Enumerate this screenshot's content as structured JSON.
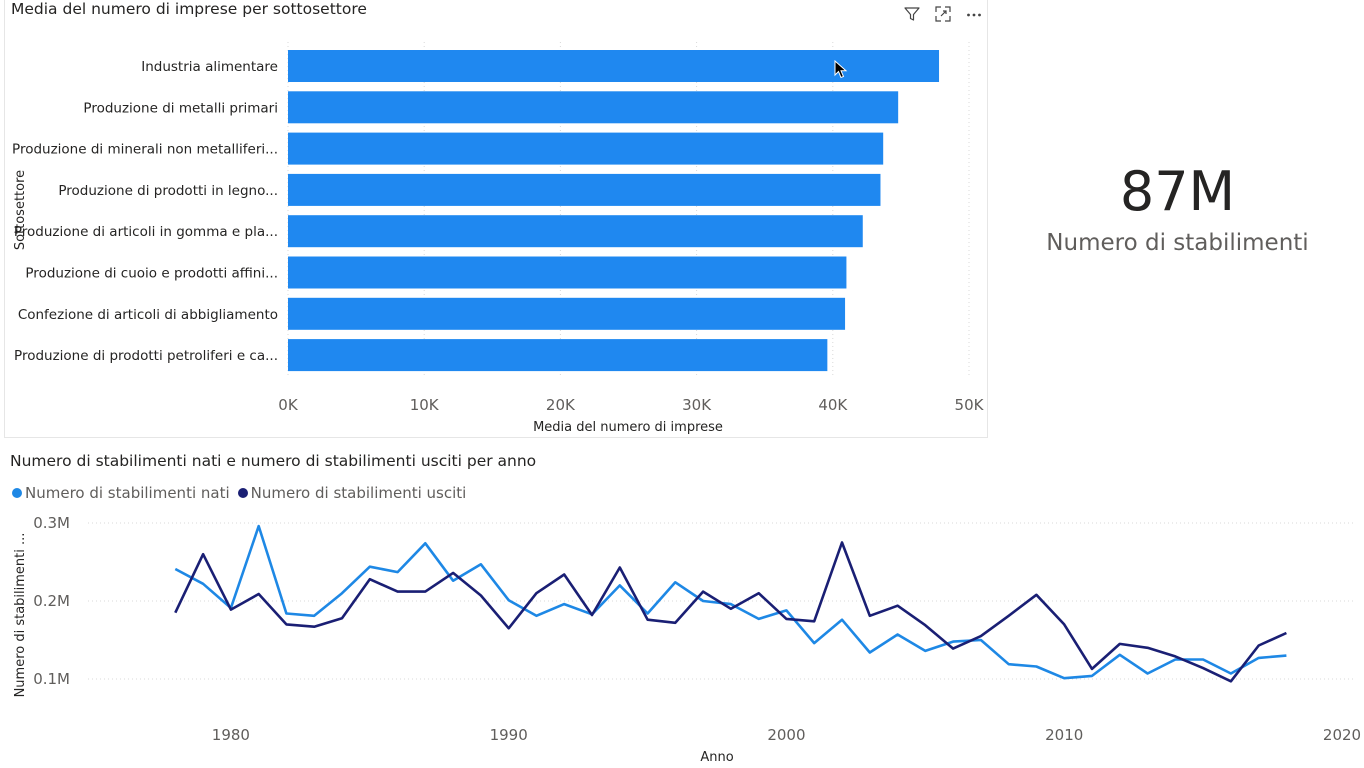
{
  "bar_chart": {
    "title": "Media del numero di imprese per sottosettore",
    "icons": [
      "filter-icon",
      "focus-mode-icon",
      "more-options-icon"
    ]
  },
  "kpi": {
    "value": "87M",
    "label": "Numero di stabilimenti"
  },
  "line_chart": {
    "title": "Numero di stabilimenti nati e numero di stabilimenti usciti per anno"
  },
  "colors": {
    "bar": "#1f88f0",
    "nati": "#1e88e5",
    "usciti": "#1a1f74",
    "grid": "#d9d9d9",
    "axis_text": "#605e5c"
  },
  "chart_data": [
    {
      "type": "bar",
      "orientation": "horizontal",
      "title": "Media del numero di imprese per sottosettore",
      "ylabel": "Sottosettore",
      "xlabel": "Media del numero di imprese",
      "categories": [
        "Industria alimentare",
        "Produzione di metalli primari",
        "Produzione di minerali non metalliferi...",
        "Produzione di prodotti in legno...",
        "Produzione di articoli in gomma e pla...",
        "Produzione di cuoio e prodotti affini...",
        "Confezione di articoli di abbigliamento",
        "Produzione di prodotti petroliferi e ca..."
      ],
      "values": [
        47800,
        44800,
        43700,
        43500,
        42200,
        41000,
        40900,
        39600
      ],
      "xlim": [
        0,
        50000
      ],
      "xticks": [
        {
          "value": 0,
          "label": "0K"
        },
        {
          "value": 10000,
          "label": "10K"
        },
        {
          "value": 20000,
          "label": "20K"
        },
        {
          "value": 30000,
          "label": "30K"
        },
        {
          "value": 40000,
          "label": "40K"
        },
        {
          "value": 50000,
          "label": "50K"
        }
      ],
      "grid": true
    },
    {
      "type": "line",
      "title": "Numero di stabilimenti nati e numero di stabilimenti usciti per anno",
      "xlabel": "Anno",
      "ylabel": "Numero di stabilimenti ...",
      "xlim": [
        1975,
        2020
      ],
      "ylim": [
        0.075,
        0.31
      ],
      "xticks": [
        {
          "value": 1980,
          "label": "1980"
        },
        {
          "value": 1990,
          "label": "1990"
        },
        {
          "value": 2000,
          "label": "2000"
        },
        {
          "value": 2010,
          "label": "2010"
        },
        {
          "value": 2020,
          "label": "2020"
        }
      ],
      "yticks": [
        {
          "value": 0.1,
          "label": "0.1M"
        },
        {
          "value": 0.2,
          "label": "0.2M"
        },
        {
          "value": 0.3,
          "label": "0.3M"
        }
      ],
      "legend": "top-left",
      "grid": true,
      "x": [
        1978,
        1979,
        1980,
        1981,
        1982,
        1983,
        1984,
        1985,
        1986,
        1987,
        1988,
        1989,
        1990,
        1991,
        1992,
        1993,
        1994,
        1995,
        1996,
        1997,
        1998,
        1999,
        2000,
        2001,
        2002,
        2003,
        2004,
        2005,
        2006,
        2007,
        2008,
        2009,
        2010,
        2011,
        2012,
        2013,
        2014,
        2015,
        2016,
        2017,
        2018
      ],
      "series": [
        {
          "name": "Numero di stabilimenti nati",
          "values": [
            0.241,
            0.222,
            0.191,
            0.296,
            0.184,
            0.181,
            0.21,
            0.244,
            0.237,
            0.274,
            0.226,
            0.247,
            0.201,
            0.181,
            0.196,
            0.183,
            0.22,
            0.184,
            0.224,
            0.2,
            0.196,
            0.177,
            0.188,
            0.146,
            0.176,
            0.134,
            0.157,
            0.136,
            0.148,
            0.15,
            0.119,
            0.116,
            0.101,
            0.104,
            0.131,
            0.107,
            0.125,
            0.125,
            0.107,
            0.127,
            0.13
          ]
        },
        {
          "name": "Numero di stabilimenti usciti",
          "values": [
            0.185,
            0.26,
            0.189,
            0.209,
            0.17,
            0.167,
            0.178,
            0.228,
            0.212,
            0.212,
            0.236,
            0.207,
            0.165,
            0.21,
            0.234,
            0.182,
            0.243,
            0.176,
            0.172,
            0.212,
            0.19,
            0.21,
            0.177,
            0.174,
            0.275,
            0.181,
            0.194,
            0.169,
            0.139,
            0.155,
            0.181,
            0.208,
            0.17,
            0.113,
            0.145,
            0.14,
            0.129,
            0.114,
            0.097,
            0.143,
            0.159
          ]
        }
      ]
    }
  ]
}
